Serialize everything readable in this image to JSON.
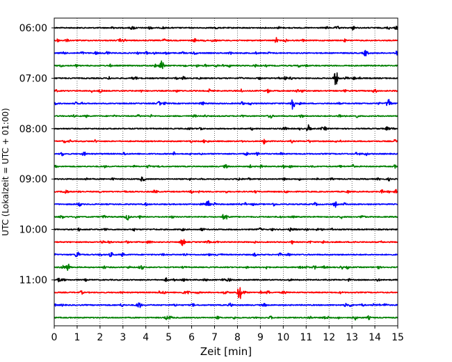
{
  "chart_data": {
    "type": "line",
    "plot_kind": "helicorder",
    "xlabel": "Zeit  [min]",
    "ylabel": "UTC (Lokalzeit = UTC + 01:00)",
    "xlim": [
      0,
      15
    ],
    "xticks": [
      0,
      1,
      2,
      3,
      4,
      5,
      6,
      7,
      8,
      9,
      10,
      11,
      12,
      13,
      14,
      15
    ],
    "xtick_labels": [
      "0",
      "1",
      "2",
      "3",
      "4",
      "5",
      "6",
      "7",
      "8",
      "9",
      "10",
      "11",
      "12",
      "13",
      "14",
      "15"
    ],
    "ytick_labels": [
      "06:00",
      "07:00",
      "08:00",
      "09:00",
      "10:00",
      "11:00"
    ],
    "ytick_rows": [
      0,
      4,
      8,
      12,
      16,
      20
    ],
    "vertical_grid": "dotted",
    "line_colors": [
      "#000000",
      "#ff0000",
      "#0000ff",
      "#008000"
    ],
    "rows": 24,
    "events": [
      {
        "row": 2,
        "minute": 13.6,
        "amplitude": 0.7
      },
      {
        "row": 3,
        "minute": 4.7,
        "amplitude": 1.2
      },
      {
        "row": 4,
        "minute": 12.3,
        "amplitude": 1.6
      },
      {
        "row": 6,
        "minute": 10.4,
        "amplitude": 1.4
      },
      {
        "row": 6,
        "minute": 14.6,
        "amplitude": 1.1
      },
      {
        "row": 13,
        "minute": 0.5,
        "amplitude": 0.5
      },
      {
        "row": 14,
        "minute": 6.7,
        "amplitude": 0.6
      },
      {
        "row": 15,
        "minute": 3.2,
        "amplitude": 0.7
      },
      {
        "row": 17,
        "minute": 5.6,
        "amplitude": 0.9
      },
      {
        "row": 18,
        "minute": 1.0,
        "amplitude": 0.6
      },
      {
        "row": 19,
        "minute": 0.6,
        "amplitude": 0.7
      },
      {
        "row": 19,
        "minute": 3.8,
        "amplitude": 0.5
      },
      {
        "row": 21,
        "minute": 8.1,
        "amplitude": 1.7
      },
      {
        "row": 22,
        "minute": 3.7,
        "amplitude": 0.7
      }
    ]
  }
}
